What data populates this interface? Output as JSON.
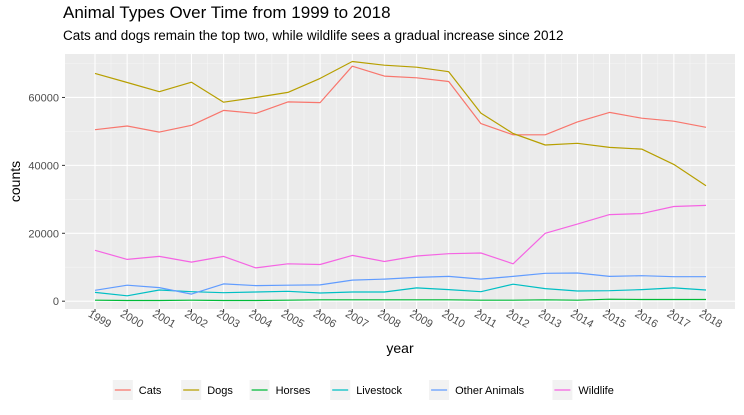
{
  "chart_data": {
    "type": "line",
    "title": "Animal Types Over Time from 1999 to 2018",
    "subtitle": "Cats and dogs remain the top two, while wildlife sees a gradual increase since 2012",
    "xlabel": "year",
    "ylabel": "counts",
    "x": [
      "1999",
      "2000",
      "2001",
      "2002",
      "2003",
      "2004",
      "2005",
      "2006",
      "2007",
      "2008",
      "2009",
      "2010",
      "2011",
      "2012",
      "2013",
      "2014",
      "2015",
      "2016",
      "2017",
      "2018"
    ],
    "yticks": [
      0,
      20000,
      40000,
      60000
    ],
    "ylim": [
      -2300,
      72800
    ],
    "grid": true,
    "legend_position": "bottom",
    "series": [
      {
        "name": "Cats",
        "color": "#F8766D",
        "values": [
          50500,
          51600,
          49800,
          51800,
          56200,
          55300,
          58700,
          58500,
          69200,
          66300,
          65800,
          64700,
          52300,
          49000,
          49000,
          52800,
          55600,
          53900,
          53000,
          51200
        ]
      },
      {
        "name": "Dogs",
        "color": "#B79F00",
        "values": [
          67100,
          64400,
          61700,
          64500,
          58600,
          60000,
          61500,
          65600,
          70600,
          69500,
          68900,
          67600,
          55400,
          49400,
          46000,
          46500,
          45300,
          44800,
          40300,
          34000
        ]
      },
      {
        "name": "Horses",
        "color": "#00BA38",
        "values": [
          300,
          200,
          200,
          300,
          200,
          200,
          300,
          400,
          400,
          400,
          400,
          400,
          300,
          300,
          400,
          300,
          600,
          500,
          500,
          500
        ]
      },
      {
        "name": "Livestock",
        "color": "#00BFC4",
        "values": [
          2600,
          1600,
          3300,
          2800,
          2500,
          2700,
          2900,
          2400,
          2700,
          2700,
          3900,
          3400,
          2800,
          5000,
          3700,
          3000,
          3100,
          3400,
          3900,
          3300
        ]
      },
      {
        "name": "Other Animals",
        "color": "#619CFF",
        "values": [
          3200,
          4700,
          4000,
          2100,
          5100,
          4600,
          4700,
          4800,
          6200,
          6500,
          7000,
          7300,
          6500,
          7300,
          8200,
          8300,
          7300,
          7500,
          7200,
          7200
        ]
      },
      {
        "name": "Wildlife",
        "color": "#F564E3",
        "values": [
          15000,
          12300,
          13200,
          11500,
          13200,
          9800,
          11000,
          10800,
          13500,
          11700,
          13300,
          14000,
          14200,
          11000,
          20000,
          22700,
          25500,
          25800,
          27900,
          28200
        ]
      }
    ]
  }
}
